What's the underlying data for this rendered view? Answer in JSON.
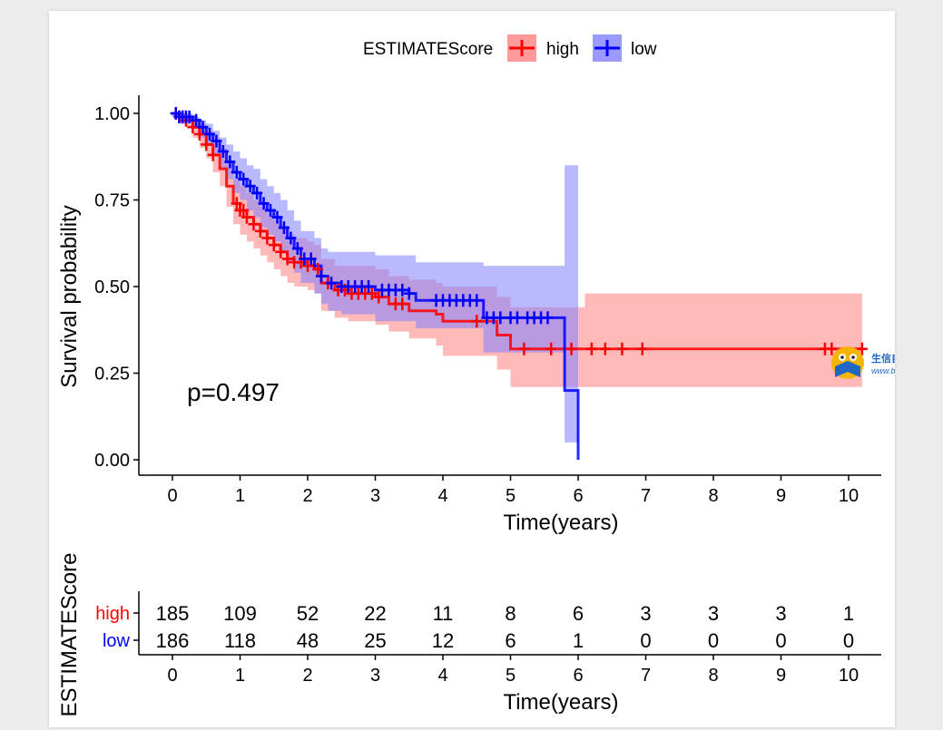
{
  "chart_data": {
    "type": "line",
    "subtype": "kaplan-meier survival curve",
    "legend": {
      "title": "ESTIMATEScore",
      "position": "top",
      "entries": [
        {
          "label": "high",
          "color": "#ff0000"
        },
        {
          "label": "low",
          "color": "#0000ff"
        }
      ]
    },
    "xlabel": "Time(years)",
    "ylabel": "Survival probability",
    "xlim": [
      0,
      10
    ],
    "ylim": [
      0,
      1
    ],
    "xticks": [
      "0",
      "1",
      "2",
      "3",
      "4",
      "5",
      "6",
      "7",
      "8",
      "9",
      "10"
    ],
    "yticks": [
      "0.00",
      "0.25",
      "0.50",
      "0.75",
      "1.00"
    ],
    "annotation": "p=0.497",
    "series": [
      {
        "name": "high",
        "color": "#ff0000",
        "band_color": "#ff8080",
        "steps": [
          [
            0,
            1.0,
            1.0,
            0.99
          ],
          [
            0.1,
            0.99,
            1.0,
            0.97
          ],
          [
            0.2,
            0.98,
            0.99,
            0.96
          ],
          [
            0.3,
            0.96,
            0.98,
            0.93
          ],
          [
            0.4,
            0.94,
            0.97,
            0.9
          ],
          [
            0.5,
            0.91,
            0.95,
            0.87
          ],
          [
            0.6,
            0.88,
            0.93,
            0.83
          ],
          [
            0.7,
            0.84,
            0.9,
            0.79
          ],
          [
            0.8,
            0.79,
            0.86,
            0.73
          ],
          [
            0.9,
            0.74,
            0.81,
            0.68
          ],
          [
            1.0,
            0.72,
            0.79,
            0.65
          ],
          [
            1.1,
            0.7,
            0.77,
            0.63
          ],
          [
            1.2,
            0.68,
            0.75,
            0.61
          ],
          [
            1.3,
            0.66,
            0.73,
            0.59
          ],
          [
            1.4,
            0.64,
            0.71,
            0.57
          ],
          [
            1.5,
            0.62,
            0.69,
            0.55
          ],
          [
            1.6,
            0.6,
            0.67,
            0.53
          ],
          [
            1.7,
            0.58,
            0.65,
            0.51
          ],
          [
            1.8,
            0.57,
            0.64,
            0.5
          ],
          [
            1.9,
            0.57,
            0.64,
            0.5
          ],
          [
            2.0,
            0.56,
            0.63,
            0.49
          ],
          [
            2.1,
            0.55,
            0.62,
            0.48
          ],
          [
            2.2,
            0.51,
            0.58,
            0.43
          ],
          [
            2.4,
            0.49,
            0.56,
            0.41
          ],
          [
            2.6,
            0.48,
            0.56,
            0.4
          ],
          [
            3.0,
            0.47,
            0.55,
            0.39
          ],
          [
            3.2,
            0.45,
            0.53,
            0.37
          ],
          [
            3.5,
            0.43,
            0.52,
            0.35
          ],
          [
            3.7,
            0.43,
            0.52,
            0.35
          ],
          [
            3.8,
            0.43,
            0.52,
            0.35
          ],
          [
            3.9,
            0.42,
            0.51,
            0.33
          ],
          [
            4.0,
            0.4,
            0.5,
            0.3
          ],
          [
            4.4,
            0.4,
            0.5,
            0.3
          ],
          [
            4.8,
            0.36,
            0.47,
            0.26
          ],
          [
            5.0,
            0.32,
            0.44,
            0.21
          ],
          [
            6.1,
            0.32,
            0.48,
            0.21
          ],
          [
            10.2,
            0.32,
            0.48,
            0.21
          ]
        ],
        "censor_times": [
          0.05,
          0.1,
          0.15,
          0.2,
          0.3,
          0.4,
          0.5,
          0.6,
          0.95,
          1.0,
          1.05,
          1.1,
          1.2,
          1.3,
          1.4,
          1.5,
          1.6,
          1.7,
          1.8,
          1.9,
          2.0,
          2.15,
          2.3,
          2.45,
          2.55,
          2.65,
          2.75,
          2.85,
          2.95,
          3.05,
          3.3,
          3.4,
          4.5,
          5.2,
          5.6,
          5.9,
          6.2,
          6.4,
          6.65,
          6.95,
          9.65,
          9.75,
          10.2
        ]
      },
      {
        "name": "low",
        "color": "#0000ff",
        "band_color": "#8080ff",
        "steps": [
          [
            0,
            1.0,
            1.0,
            0.99
          ],
          [
            0.1,
            0.99,
            1.0,
            0.97
          ],
          [
            0.3,
            0.98,
            0.99,
            0.96
          ],
          [
            0.4,
            0.96,
            0.98,
            0.93
          ],
          [
            0.5,
            0.94,
            0.97,
            0.91
          ],
          [
            0.6,
            0.92,
            0.95,
            0.88
          ],
          [
            0.7,
            0.89,
            0.93,
            0.84
          ],
          [
            0.8,
            0.86,
            0.91,
            0.81
          ],
          [
            0.9,
            0.83,
            0.89,
            0.77
          ],
          [
            1.0,
            0.81,
            0.87,
            0.75
          ],
          [
            1.1,
            0.79,
            0.85,
            0.72
          ],
          [
            1.2,
            0.77,
            0.84,
            0.7
          ],
          [
            1.3,
            0.74,
            0.81,
            0.67
          ],
          [
            1.4,
            0.72,
            0.79,
            0.65
          ],
          [
            1.5,
            0.7,
            0.77,
            0.63
          ],
          [
            1.6,
            0.67,
            0.75,
            0.6
          ],
          [
            1.7,
            0.64,
            0.72,
            0.57
          ],
          [
            1.8,
            0.61,
            0.69,
            0.54
          ],
          [
            1.9,
            0.58,
            0.66,
            0.51
          ],
          [
            2.0,
            0.58,
            0.66,
            0.51
          ],
          [
            2.1,
            0.56,
            0.64,
            0.48
          ],
          [
            2.2,
            0.53,
            0.61,
            0.45
          ],
          [
            2.3,
            0.51,
            0.6,
            0.43
          ],
          [
            2.5,
            0.5,
            0.6,
            0.42
          ],
          [
            3.0,
            0.49,
            0.59,
            0.4
          ],
          [
            3.5,
            0.48,
            0.59,
            0.4
          ],
          [
            3.6,
            0.46,
            0.57,
            0.38
          ],
          [
            4.6,
            0.41,
            0.56,
            0.31
          ],
          [
            5.8,
            0.2,
            0.85,
            0.05
          ],
          [
            6.0,
            0.0,
            0.85,
            0.05
          ]
        ],
        "censor_times": [
          0.05,
          0.1,
          0.15,
          0.2,
          0.25,
          0.35,
          0.45,
          0.55,
          0.65,
          0.75,
          0.85,
          0.95,
          1.05,
          1.15,
          1.25,
          1.35,
          1.45,
          1.55,
          1.65,
          1.75,
          1.85,
          1.95,
          2.05,
          2.2,
          2.35,
          2.5,
          2.6,
          2.7,
          2.8,
          2.9,
          3.1,
          3.2,
          3.3,
          3.4,
          3.5,
          3.9,
          4.0,
          4.1,
          4.2,
          4.3,
          4.4,
          4.5,
          4.65,
          4.75,
          4.85,
          5.0,
          5.1,
          5.25,
          5.35,
          5.45,
          5.55
        ]
      }
    ],
    "risk_table": {
      "title": "ESTIMATEScore",
      "xlabel": "Time(years)",
      "times": [
        "0",
        "1",
        "2",
        "3",
        "4",
        "5",
        "6",
        "7",
        "8",
        "9",
        "10"
      ],
      "rows": [
        {
          "label": "high",
          "color": "#ff0000",
          "values": [
            "185",
            "109",
            "52",
            "22",
            "11",
            "8",
            "6",
            "3",
            "3",
            "3",
            "1"
          ]
        },
        {
          "label": "low",
          "color": "#0000ff",
          "values": [
            "186",
            "118",
            "48",
            "25",
            "12",
            "6",
            "1",
            "0",
            "0",
            "0",
            "0"
          ]
        }
      ]
    }
  },
  "watermark": {
    "name": "生信自学网",
    "url": "www.biowolf.cn",
    "icon": "owl-book-logo"
  }
}
